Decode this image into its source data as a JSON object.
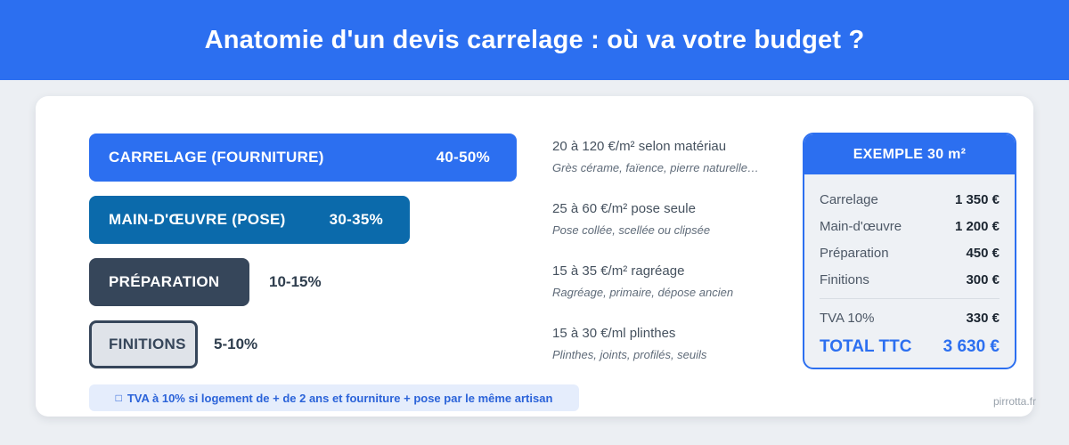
{
  "header": {
    "title": "Anatomie d'un devis carrelage : où va votre budget ?"
  },
  "chart_data": {
    "type": "bar",
    "orientation": "horizontal",
    "title": "Anatomie d'un devis carrelage : où va votre budget ?",
    "categories": [
      "CARRELAGE (FOURNITURE)",
      "MAIN-D'ŒUVRE (POSE)",
      "PRÉPARATION",
      "FINITIONS"
    ],
    "value_labels": [
      "40-50%",
      "30-35%",
      "10-15%",
      "5-10%"
    ],
    "values_min": [
      40,
      30,
      10,
      5
    ],
    "values_max": [
      50,
      35,
      15,
      10
    ],
    "unit": "%",
    "bar_colors": [
      "#2c6ff0",
      "#0b6aab",
      "#36465a",
      "#dfe3e9"
    ],
    "legend": "none",
    "grid": false
  },
  "details": [
    {
      "title": "20 à 120 €/m² selon matériau",
      "subtitle": "Grès cérame, faïence, pierre naturelle…"
    },
    {
      "title": "25 à 60 €/m² pose seule",
      "subtitle": "Pose collée, scellée ou clipsée"
    },
    {
      "title": "15 à 35 €/m² ragréage",
      "subtitle": "Ragréage, primaire, dépose ancien"
    },
    {
      "title": "15 à 30 €/ml plinthes",
      "subtitle": "Plinthes, joints, profilés, seuils"
    }
  ],
  "note": {
    "icon": "□",
    "text": "TVA à 10% si logement de + de 2 ans et fourniture + pose par le même artisan"
  },
  "example": {
    "title": "EXEMPLE 30 m²",
    "rows": [
      {
        "label": "Carrelage",
        "value": "1 350 €"
      },
      {
        "label": "Main-d'œuvre",
        "value": "1 200 €"
      },
      {
        "label": "Préparation",
        "value": "450 €"
      },
      {
        "label": "Finitions",
        "value": "300 €"
      }
    ],
    "tva": {
      "label": "TVA 10%",
      "value": "330 €"
    },
    "total": {
      "label": "TOTAL TTC",
      "value": "3 630 €"
    }
  },
  "watermark": "pirrotta.fr",
  "colors": {
    "primary_blue": "#2c6ff0",
    "secondary_blue": "#0b6aab",
    "dark_slate": "#36465a",
    "light_bar": "#dfe3e9",
    "note_bg": "#e5edfc",
    "note_text": "#2b63d9",
    "page_bg": "#eceff3",
    "card_bg": "#ffffff",
    "example_bg": "#eef1f5"
  }
}
